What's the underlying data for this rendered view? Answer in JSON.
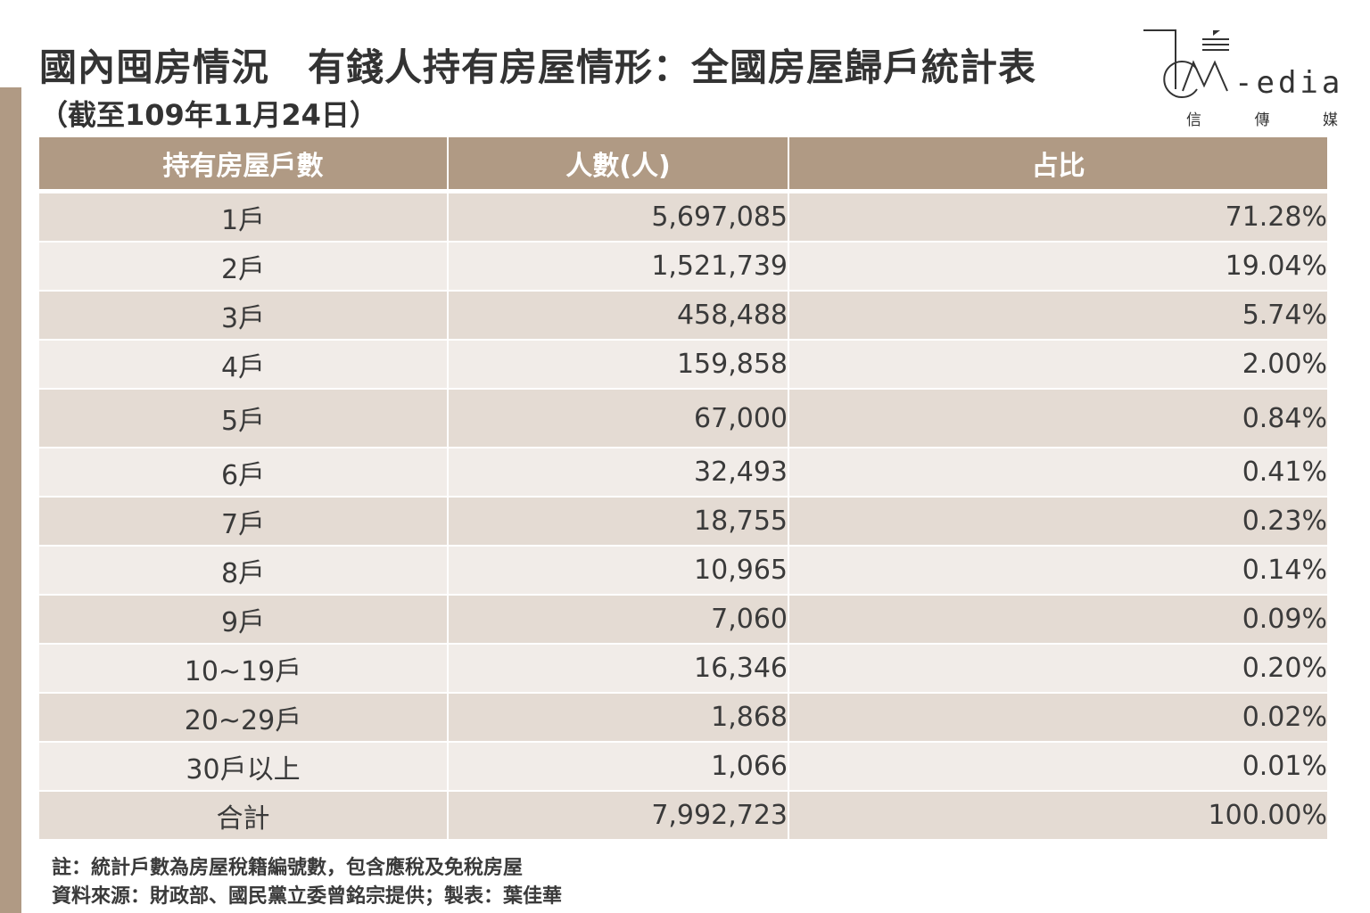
{
  "title": "國內囤房情況　有錢人持有房屋情形：全國房屋歸戶統計表",
  "subtitle": "（截至109年11月24日）",
  "logo": {
    "wordmark": "Media",
    "sub": [
      "信",
      "傳",
      "媒"
    ]
  },
  "table": {
    "headers": [
      "持有房屋戶數",
      "人數(人)",
      "占比"
    ],
    "rows": [
      {
        "houses": "1戶",
        "people": "5,697,085",
        "share": "71.28%"
      },
      {
        "houses": "2戶",
        "people": "1,521,739",
        "share": "19.04%"
      },
      {
        "houses": "3戶",
        "people": "458,488",
        "share": "5.74%"
      },
      {
        "houses": "4戶",
        "people": "159,858",
        "share": "2.00%"
      },
      {
        "houses": "5戶",
        "people": "67,000",
        "share": "0.84%"
      },
      {
        "houses": "6戶",
        "people": "32,493",
        "share": "0.41%"
      },
      {
        "houses": "7戶",
        "people": "18,755",
        "share": "0.23%"
      },
      {
        "houses": "8戶",
        "people": "10,965",
        "share": "0.14%"
      },
      {
        "houses": "9戶",
        "people": "7,060",
        "share": "0.09%"
      },
      {
        "houses": "10~19戶",
        "people": "16,346",
        "share": "0.20%"
      },
      {
        "houses": "20~29戶",
        "people": "1,868",
        "share": "0.02%"
      },
      {
        "houses": "30戶以上",
        "people": "1,066",
        "share": "0.01%"
      },
      {
        "houses": "合計",
        "people": "7,992,723",
        "share": "100.00%"
      }
    ]
  },
  "notes": {
    "note": "註：統計戶數為房屋稅籍編號數，包含應稅及免稅房屋",
    "source": "資料來源：財政部、國民黨立委曾銘宗提供；製表：葉佳華"
  },
  "colors": {
    "header_bg": "#b09a84",
    "row_dark": "#e4dbd3",
    "row_light": "#f1ece8",
    "side_bar": "#b09a84"
  }
}
